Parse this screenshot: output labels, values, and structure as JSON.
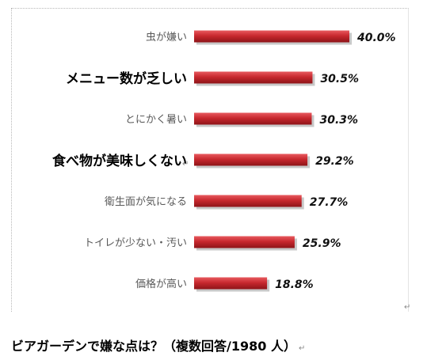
{
  "chart_data": {
    "type": "bar",
    "orientation": "horizontal",
    "categories": [
      "虫が嫌い",
      "メニュー数が乏しい",
      "とにかく暑い",
      "食べ物が美味しくない",
      "衛生面が気になる",
      "トイレが少ない・汚い",
      "価格が高い"
    ],
    "values": [
      40.0,
      30.5,
      30.3,
      29.2,
      27.7,
      25.9,
      18.8
    ],
    "value_labels": [
      "40.0%",
      "30.5%",
      "30.3%",
      "29.2%",
      "27.7%",
      "25.9%",
      "18.8%"
    ],
    "emphasized": [
      false,
      true,
      false,
      true,
      false,
      false,
      false
    ],
    "title": "ビアガーデンで嫌な点は？（複数回答/1980 人）",
    "xlabel": "",
    "ylabel": "",
    "xlim": [
      0,
      45
    ],
    "grid": false,
    "legend": "none",
    "bar_color": "#c8282e"
  },
  "caption": "ビアガーデンで嫌な点は？（複数回答/1980 人）",
  "paragraph_mark": "↵"
}
